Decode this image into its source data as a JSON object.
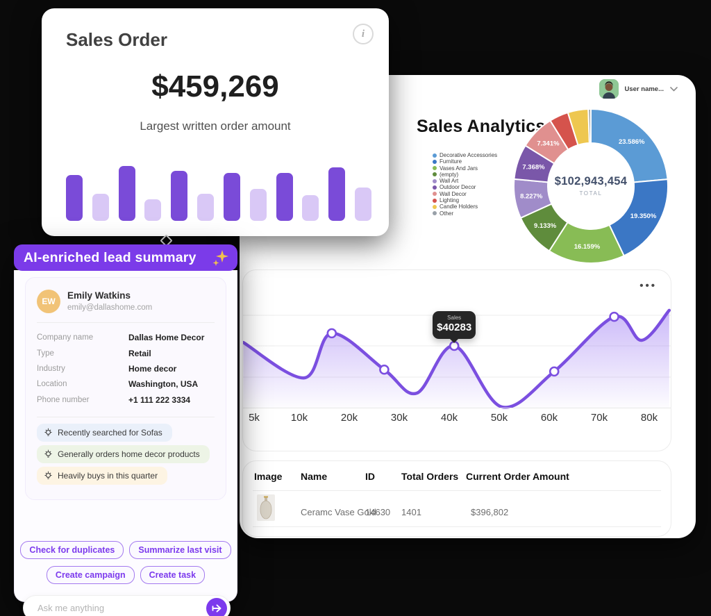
{
  "sales_order_card": {
    "title": "Sales Order",
    "info_icon": "i",
    "amount": "$459,269",
    "subtitle": "Largest written order amount"
  },
  "dashboard": {
    "user_menu": {
      "label": "User name..."
    },
    "analytics": {
      "title": "Sales Analytics",
      "total_value": "$102,943,454",
      "total_label": "TOTAL"
    },
    "sales_chart": {
      "menu_icon": "•••",
      "tooltip": {
        "label": "Sales",
        "value": "$40283",
        "at_x": 41
      }
    },
    "table": {
      "headers": [
        "Image",
        "Name",
        "ID",
        "Total Orders",
        "Current Order Amount"
      ],
      "rows": [
        {
          "image": "ceramic-vase-thumbnail",
          "name": "Ceramc Vase Gold",
          "id": "14630",
          "total_orders": "1401",
          "current_order_amount": "$396,802"
        }
      ]
    }
  },
  "lead_card": {
    "header": "AI-enriched lead summary",
    "sparkle_icon": "sparkles",
    "profile": {
      "initials": "EW",
      "name": "Emily Watkins",
      "email": "emily@dallashome.com"
    },
    "fields": [
      {
        "label": "Company name",
        "value": "Dallas Home Decor"
      },
      {
        "label": "Type",
        "value": "Retail"
      },
      {
        "label": "Industry",
        "value": "Home decor"
      },
      {
        "label": "Location",
        "value": "Washington, USA"
      },
      {
        "label": "Phone number",
        "value": "+1 111 222 3334"
      }
    ],
    "insights": [
      {
        "text": "Recently searched for Sofas",
        "bg": "#EAF0FA"
      },
      {
        "text": "Generally orders home decor products",
        "bg": "#EDF4E6"
      },
      {
        "text": "Heavily buys in this quarter",
        "bg": "#FDF4E3"
      }
    ],
    "actions": [
      "Check for duplicates",
      "Summarize last visit",
      "Create campaign",
      "Create task"
    ],
    "input": {
      "placeholder": "Ask me anything"
    }
  },
  "colors": {
    "accent_purple": "#7C3AED",
    "bar_dark": "#7A4BD8",
    "bar_light": "#D9C8F6",
    "line_purple": "#7B4FE0",
    "tooltip_bg": "#262626"
  },
  "chart_data": [
    {
      "type": "bar",
      "title": "Sales Order mini bar chart",
      "values": [
        66,
        39,
        79,
        31,
        72,
        39,
        69,
        46,
        69,
        37,
        77,
        48
      ],
      "palette": [
        "#7A4BD8",
        "#D9C8F6"
      ],
      "note": "alternating dark/light purple bars, no axes shown"
    },
    {
      "type": "pie",
      "title": "Sales Analytics donut",
      "total": "$102,943,454",
      "total_label": "TOTAL",
      "legend_position": "left",
      "segments": [
        {
          "label": "Decorative Accessories",
          "pct": 23.586,
          "pct_label": "23.586%",
          "color": "#5B9BD5"
        },
        {
          "label": "Furniture",
          "pct": 19.35,
          "pct_label": "19.350%",
          "color": "#3B77C5"
        },
        {
          "label": "Vases And Jars",
          "pct": 16.159,
          "pct_label": "16.159%",
          "color": "#88BC55"
        },
        {
          "label": "(empty)",
          "pct": 9.133,
          "pct_label": "9.133%",
          "color": "#5F8C3C"
        },
        {
          "label": "Wall Art",
          "pct": 8.227,
          "pct_label": "8.227%",
          "color": "#A08CC9"
        },
        {
          "label": "Outdoor Decor",
          "pct": 7.368,
          "pct_label": "7.368%",
          "color": "#7A57A9"
        },
        {
          "label": "Wall Decor",
          "pct": 7.341,
          "pct_label": "7.341%",
          "color": "#E0908F"
        },
        {
          "label": "Lighting",
          "pct": 4.0,
          "pct_label": null,
          "color": "#D5534C"
        },
        {
          "label": "Candle Holders",
          "pct": 4.3,
          "pct_label": null,
          "color": "#EEC750"
        },
        {
          "label": "Other",
          "pct": 0.536,
          "pct_label": null,
          "color": "#98A0A8"
        }
      ]
    },
    {
      "type": "area",
      "title": "Sales line chart",
      "x_tick_labels": [
        "5k",
        "10k",
        "20k",
        "30k",
        "40k",
        "50k",
        "60k",
        "70k",
        "80k"
      ],
      "ylim": [
        18000,
        54000
      ],
      "grid": true,
      "series": [
        {
          "name": "Sales",
          "points": [
            {
              "x": 3.8,
              "y": 41400
            },
            {
              "x": 11,
              "y": 29800
            },
            {
              "x": 16.5,
              "y": 44400
            },
            {
              "x": 27,
              "y": 32500
            },
            {
              "x": 33.5,
              "y": 24800
            },
            {
              "x": 41,
              "y": 40283
            },
            {
              "x": 50.5,
              "y": 20300
            },
            {
              "x": 61,
              "y": 31900
            },
            {
              "x": 73,
              "y": 49800
            },
            {
              "x": 78.5,
              "y": 42100
            },
            {
              "x": 84,
              "y": 51900
            }
          ]
        }
      ],
      "markers_at_x": [
        16.5,
        27,
        41,
        61,
        73
      ]
    }
  ]
}
